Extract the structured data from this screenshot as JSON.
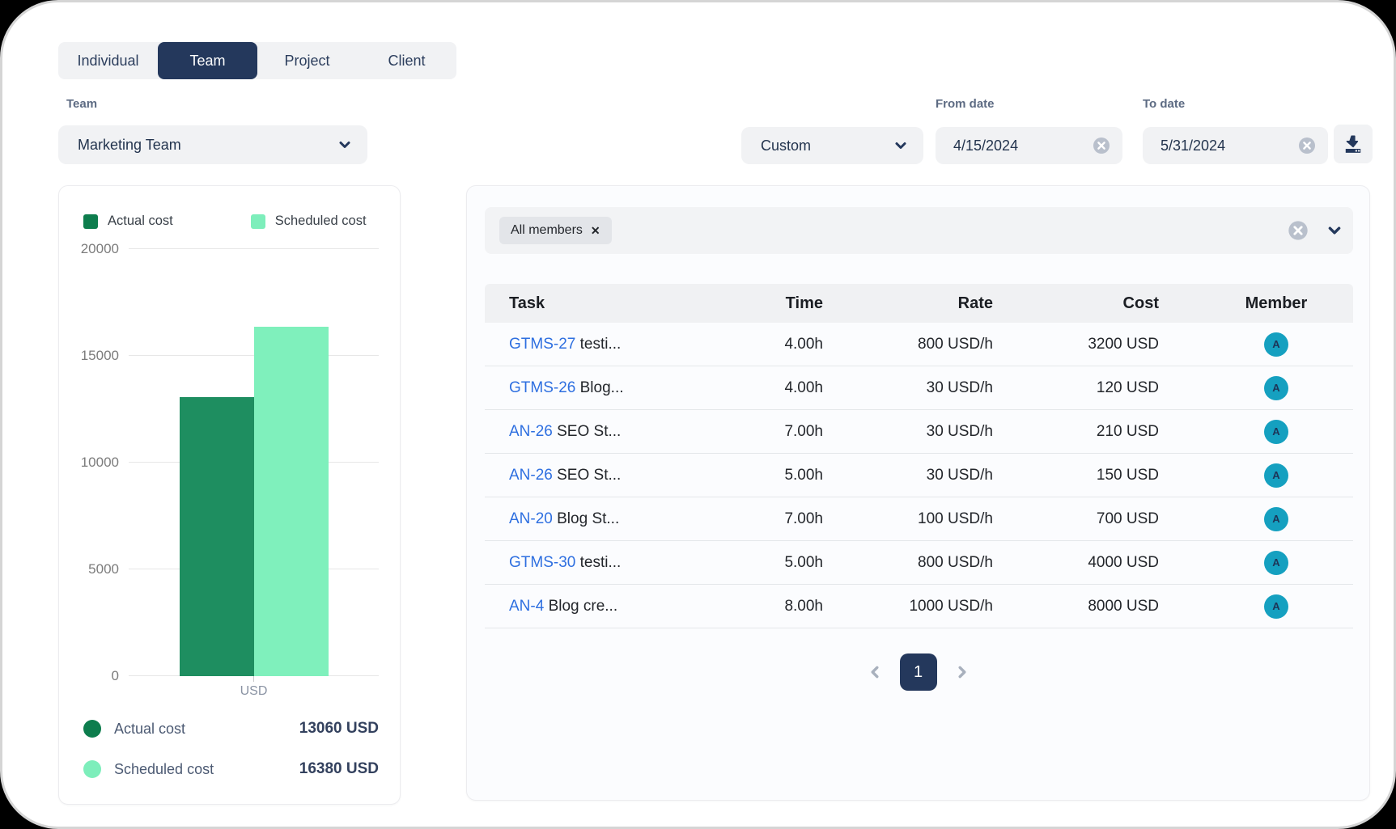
{
  "tabs": [
    {
      "label": "Individual",
      "active": false
    },
    {
      "label": "Team",
      "active": true
    },
    {
      "label": "Project",
      "active": false
    },
    {
      "label": "Client",
      "active": false
    }
  ],
  "filters": {
    "team_label": "Team",
    "team_value": "Marketing Team",
    "range_value": "Custom",
    "from_label": "From date",
    "from_value": "4/15/2024",
    "to_label": "To date",
    "to_value": "5/31/2024"
  },
  "chart_data": {
    "type": "bar",
    "title": "",
    "categories": [
      "USD"
    ],
    "series": [
      {
        "name": "Actual cost",
        "values": [
          13060
        ],
        "color": "#1e8e60",
        "legend_color": "#0d7d4d"
      },
      {
        "name": "Scheduled cost",
        "values": [
          16380
        ],
        "color": "#7ff0bc",
        "legend_color": "#7deebb"
      }
    ],
    "xlabel": "USD",
    "ylabel": "",
    "ylim": [
      0,
      20000
    ],
    "yticks": [
      0,
      5000,
      10000,
      15000,
      20000
    ],
    "grid": true,
    "legend_position": "top"
  },
  "summary": {
    "totals": [
      {
        "label": "Actual cost",
        "value": "13060 USD"
      },
      {
        "label": "Scheduled cost",
        "value": "16380 USD"
      }
    ]
  },
  "members_filter": {
    "chip_label": "All members"
  },
  "table": {
    "headers": [
      "Task",
      "Time",
      "Rate",
      "Cost",
      "Member"
    ],
    "rows": [
      {
        "task_id": "GTMS-27",
        "task_title": "testi...",
        "time": "4.00h",
        "rate": "800 USD/h",
        "cost": "3200 USD",
        "member_initial": "A"
      },
      {
        "task_id": "GTMS-26",
        "task_title": "Blog...",
        "time": "4.00h",
        "rate": "30 USD/h",
        "cost": "120 USD",
        "member_initial": "A"
      },
      {
        "task_id": "AN-26",
        "task_title": "SEO St...",
        "time": "7.00h",
        "rate": "30 USD/h",
        "cost": "210 USD",
        "member_initial": "A"
      },
      {
        "task_id": "AN-26",
        "task_title": "SEO St...",
        "time": "5.00h",
        "rate": "30 USD/h",
        "cost": "150 USD",
        "member_initial": "A"
      },
      {
        "task_id": "AN-20",
        "task_title": "Blog St...",
        "time": "7.00h",
        "rate": "100 USD/h",
        "cost": "700 USD",
        "member_initial": "A"
      },
      {
        "task_id": "GTMS-30",
        "task_title": "testi...",
        "time": "5.00h",
        "rate": "800 USD/h",
        "cost": "4000 USD",
        "member_initial": "A"
      },
      {
        "task_id": "AN-4",
        "task_title": "Blog cre...",
        "time": "8.00h",
        "rate": "1000 USD/h",
        "cost": "8000 USD",
        "member_initial": "A"
      }
    ]
  },
  "pagination": {
    "current_page": "1"
  },
  "colors": {
    "accent_navy": "#24385c",
    "avatar": "#15a0c0",
    "link_blue": "#2e6fe0",
    "actual_bar": "#1e8e60",
    "scheduled_bar": "#7ff0bc"
  }
}
